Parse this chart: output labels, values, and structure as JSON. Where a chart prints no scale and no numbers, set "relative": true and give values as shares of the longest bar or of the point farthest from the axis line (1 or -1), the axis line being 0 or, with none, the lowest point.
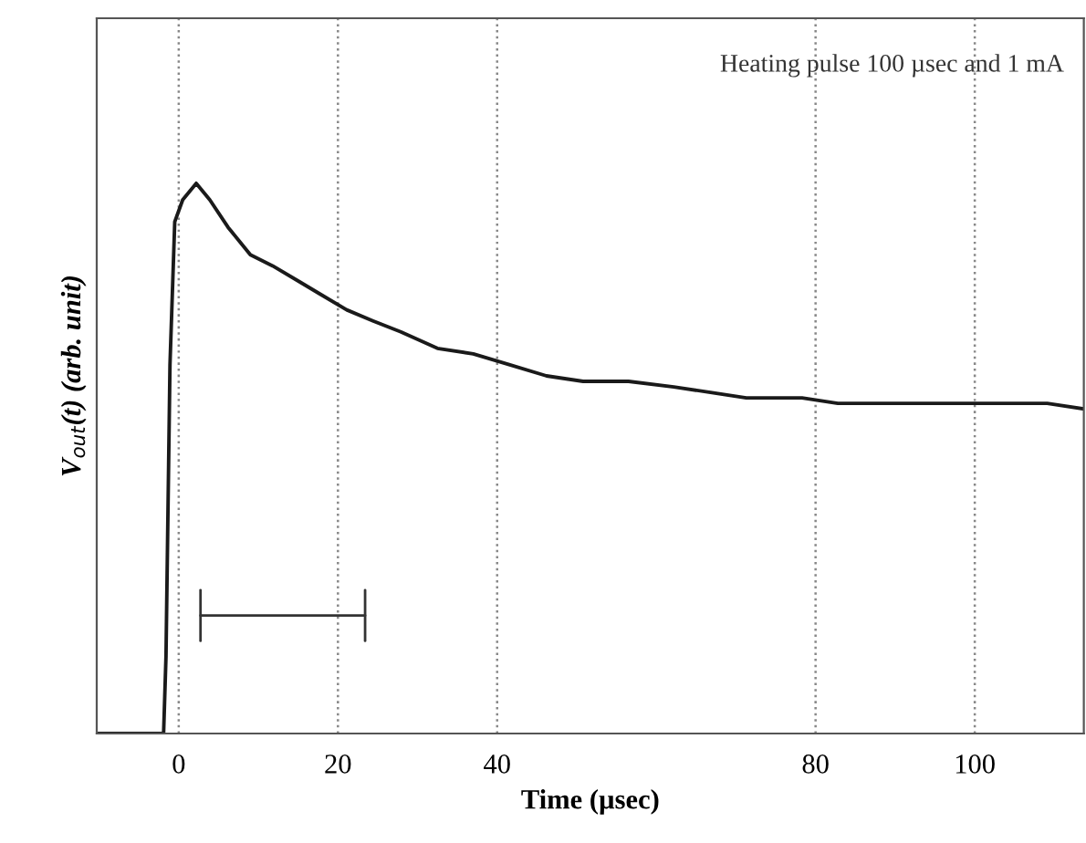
{
  "chart_data": {
    "type": "line",
    "relative": true,
    "xlabel": "Time (µsec)",
    "ylabel": "V$_{out}$(t) (arb. unit)",
    "annotations": [
      "Heating pulse 100 µsec and 1 mA"
    ],
    "xlim": [
      -10.3,
      113.7
    ],
    "xticks": [
      0,
      20,
      40,
      80,
      100
    ],
    "grid": "x",
    "legend": false,
    "marker": "none",
    "line_style": "solid",
    "series": [
      {
        "color": "#1a1a1a",
        "x": [
          -10.3,
          -1.9,
          -1.6,
          -1.1,
          -0.5,
          0.5,
          2.2,
          3.9,
          6.2,
          9,
          11.8,
          15.3,
          17.6,
          21.1,
          24.4,
          27.9,
          32.5,
          37,
          41.6,
          46.2,
          50.8,
          56.5,
          62.2,
          66.8,
          71.3,
          78.3,
          82.8,
          89.6,
          96.5,
          103.4,
          109.1,
          113.7
        ],
        "values": [
          0,
          0,
          0.14,
          0.67,
          0.93,
          0.97,
          1.0,
          0.97,
          0.92,
          0.87,
          0.85,
          0.82,
          0.8,
          0.77,
          0.75,
          0.73,
          0.7,
          0.69,
          0.67,
          0.65,
          0.64,
          0.64,
          0.63,
          0.62,
          0.61,
          0.61,
          0.6,
          0.6,
          0.6,
          0.6,
          0.6,
          0.59
        ]
      }
    ]
  }
}
